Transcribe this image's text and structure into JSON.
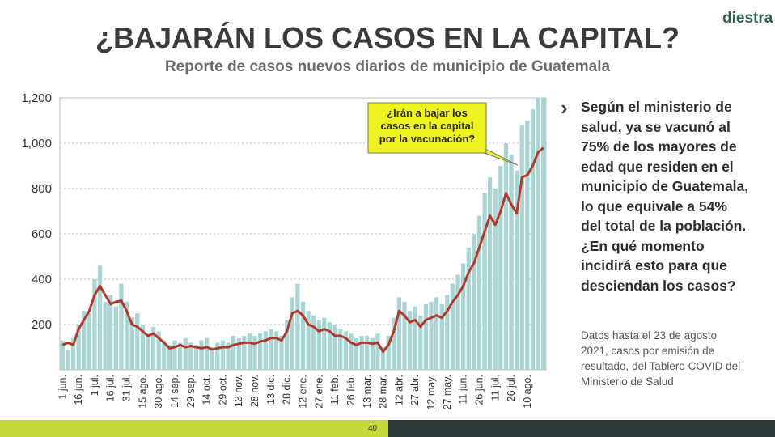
{
  "header": {
    "logo": "diestra",
    "title": "¿BAJARÁN LOS CASOS EN LA CAPITAL?",
    "subtitle": "Reporte de casos nuevos diarios de municipio de Guatemala"
  },
  "chart_data": {
    "type": "bar+line",
    "categories": [
      "1 jun.",
      null,
      null,
      "16 jun.",
      null,
      null,
      "1 jul.",
      null,
      null,
      "16 jul.",
      null,
      null,
      "31 jul.",
      null,
      null,
      "15 ago.",
      null,
      null,
      "30 ago.",
      null,
      null,
      "14 sep.",
      null,
      null,
      "29 sep.",
      null,
      null,
      "14 oct.",
      null,
      null,
      "29 oct.",
      null,
      null,
      "13 nov.",
      null,
      null,
      "28 nov.",
      null,
      null,
      "13 dic.",
      null,
      null,
      "28 dic.",
      null,
      null,
      "12 ene.",
      null,
      null,
      "27 ene.",
      null,
      null,
      "11 feb.",
      null,
      null,
      "26 feb.",
      null,
      null,
      "13 mar.",
      null,
      null,
      "28 mar.",
      null,
      null,
      "12 abr.",
      null,
      null,
      "27 abr.",
      null,
      null,
      "12 may.",
      null,
      null,
      "27 may.",
      null,
      null,
      "11 jun.",
      null,
      null,
      "26 jun.",
      null,
      null,
      "11 jul.",
      null,
      null,
      "26 jul.",
      null,
      null,
      "10 ago.",
      null,
      null,
      null
    ],
    "series": [
      {
        "kind": "bar",
        "color": "#a9d6d4",
        "values": [
          130,
          90,
          140,
          200,
          260,
          250,
          400,
          460,
          300,
          330,
          280,
          380,
          300,
          230,
          250,
          200,
          160,
          190,
          170,
          130,
          110,
          130,
          120,
          140,
          120,
          110,
          130,
          140,
          100,
          120,
          130,
          120,
          150,
          140,
          150,
          160,
          150,
          160,
          170,
          180,
          170,
          150,
          220,
          320,
          380,
          300,
          260,
          240,
          220,
          230,
          210,
          200,
          180,
          170,
          160,
          140,
          150,
          150,
          140,
          160,
          100,
          150,
          230,
          320,
          300,
          260,
          280,
          240,
          290,
          300,
          320,
          290,
          330,
          380,
          420,
          470,
          540,
          600,
          680,
          780,
          850,
          800,
          900,
          1000,
          950,
          880,
          1080,
          1100,
          1150,
          1200,
          1200
        ]
      },
      {
        "kind": "line",
        "color": "#b03a2e",
        "values": [
          110,
          120,
          110,
          180,
          220,
          260,
          330,
          370,
          330,
          290,
          300,
          305,
          260,
          200,
          190,
          170,
          150,
          160,
          140,
          120,
          95,
          100,
          110,
          100,
          105,
          100,
          95,
          100,
          90,
          95,
          100,
          100,
          110,
          115,
          120,
          120,
          115,
          125,
          130,
          140,
          140,
          130,
          170,
          250,
          260,
          240,
          200,
          190,
          170,
          180,
          170,
          150,
          150,
          140,
          120,
          110,
          120,
          120,
          115,
          120,
          80,
          110,
          170,
          260,
          240,
          210,
          220,
          190,
          220,
          230,
          240,
          230,
          260,
          300,
          330,
          370,
          430,
          470,
          540,
          610,
          680,
          640,
          700,
          780,
          730,
          690,
          850,
          860,
          900,
          960,
          980
        ]
      }
    ],
    "ylim": [
      0,
      1200
    ],
    "yticks": [
      200,
      400,
      600,
      800,
      {
        "value": 1000,
        "label": "1,000"
      },
      {
        "value": 1200,
        "label": "1,200"
      }
    ],
    "grid": true,
    "annotation": "¿Irán a bajar los casos en la capital por la vacunación?"
  },
  "side": {
    "text": "Según el ministerio de salud, ya se vacunó al 75% de los mayores de edad que residen en el municipio de Guatemala, lo que equivale a 54% del total de la población. ¿En qué momento incidirá esto para que desciendan los casos?",
    "note": "Datos hasta el 23 de agosto 2021, casos por emisión de resultado, del Tablero COVID del Ministerio de Salud"
  },
  "footer": {
    "page": "40"
  }
}
